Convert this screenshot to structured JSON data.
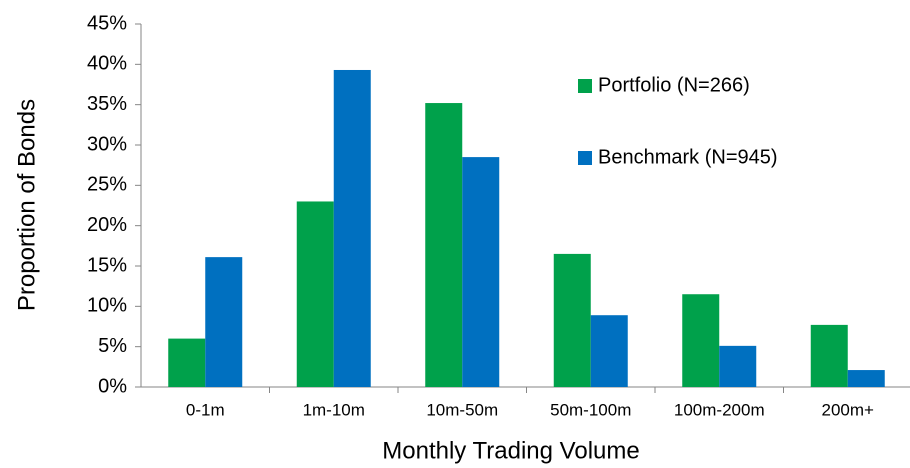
{
  "chart_data": {
    "type": "bar",
    "x_label": "Monthly Trading Volume",
    "y_label": "Proportion of Bonds",
    "categories": [
      "0-1m",
      "1m-10m",
      "10m-50m",
      "50m-100m",
      "100m-200m",
      "200m+"
    ],
    "series": [
      {
        "name": "Portfolio (N=266)",
        "color": "#00a14b",
        "values": [
          6.0,
          23.0,
          35.2,
          16.5,
          11.5,
          7.7
        ]
      },
      {
        "name": "Benchmark (N=945)",
        "color": "#0070c0",
        "values": [
          16.1,
          39.3,
          28.5,
          8.9,
          5.1,
          2.1
        ]
      }
    ],
    "ylim": [
      0,
      45
    ],
    "yticks": [
      {
        "value": 0,
        "label": "0%"
      },
      {
        "value": 5,
        "label": "5%"
      },
      {
        "value": 10,
        "label": "10%"
      },
      {
        "value": 15,
        "label": "15%"
      },
      {
        "value": 20,
        "label": "20%"
      },
      {
        "value": 25,
        "label": "25%"
      },
      {
        "value": 30,
        "label": "30%"
      },
      {
        "value": 35,
        "label": "35%"
      },
      {
        "value": 40,
        "label": "40%"
      },
      {
        "value": 45,
        "label": "45%"
      }
    ],
    "grid": false,
    "legend": "right"
  }
}
